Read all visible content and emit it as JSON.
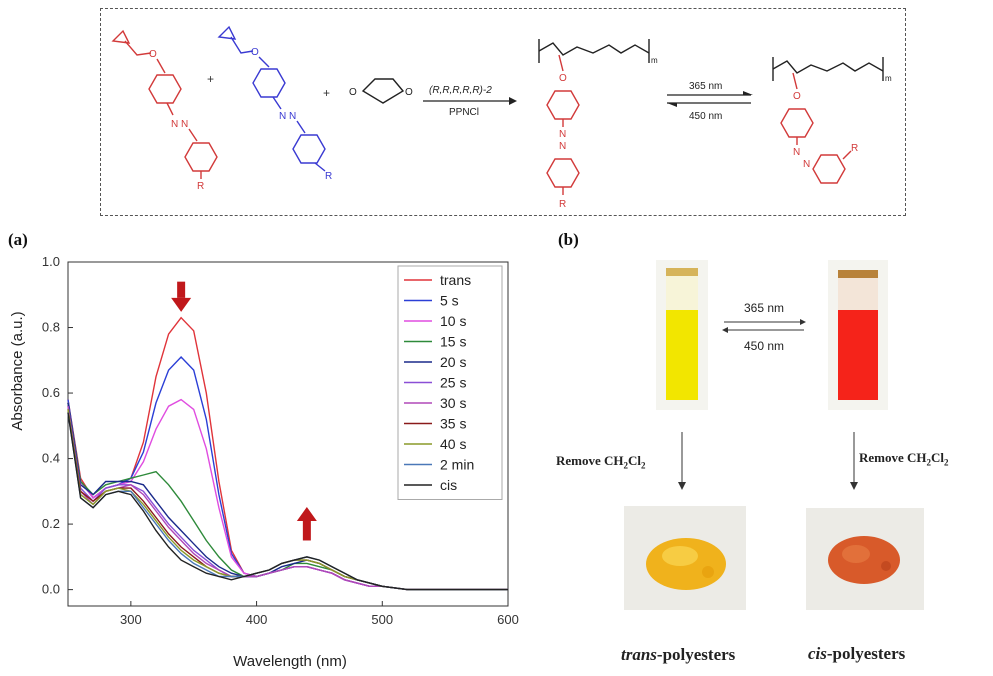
{
  "scheme": {
    "reagent_label": "(R,R,R,R,R)-2",
    "cocatalyst_label": "PPNCl",
    "forward_light": "365 nm",
    "reverse_light": "450 nm",
    "substituent": "R",
    "plus": "+",
    "subscript_m": "m"
  },
  "panel_a": {
    "label": "(a)"
  },
  "panel_b": {
    "label": "(b)",
    "forward_light": "365 nm",
    "reverse_light": "450 nm",
    "remove_left": "Remove CH2Cl2",
    "remove_right": "Remove CH2Cl2",
    "caption_trans_italic": "trans",
    "caption_trans_rest": "-polyesters",
    "caption_cis_italic": "cis",
    "caption_cis_rest": "-polyesters",
    "colors": {
      "trans_solution": "#f2e600",
      "cis_solution": "#f5231a",
      "trans_powder": "#f0b21c",
      "cis_powder": "#d85a2a"
    }
  },
  "chart_data": {
    "type": "line",
    "xlabel": "Wavelength (nm)",
    "ylabel": "Absorbance (a.u.)",
    "xlim": [
      250,
      600
    ],
    "ylim": [
      -0.05,
      1.0
    ],
    "xticks": [
      300,
      400,
      500,
      600
    ],
    "yticks": [
      0.0,
      0.2,
      0.4,
      0.6,
      0.8,
      1.0
    ],
    "legend_position": "top-right",
    "arrows": [
      {
        "x": 340,
        "y_from": 0.94,
        "y_to": 0.86,
        "direction": "down",
        "color": "#c0181b"
      },
      {
        "x": 440,
        "y_from": 0.15,
        "y_to": 0.24,
        "direction": "up",
        "color": "#c0181b"
      }
    ],
    "x": [
      250,
      260,
      270,
      280,
      290,
      300,
      310,
      320,
      330,
      340,
      350,
      360,
      370,
      380,
      390,
      400,
      410,
      420,
      430,
      440,
      450,
      460,
      470,
      480,
      490,
      500,
      520,
      540,
      560,
      580,
      600
    ],
    "series": [
      {
        "name": "trans",
        "color": "#e0343a",
        "values": [
          0.58,
          0.34,
          0.28,
          0.31,
          0.32,
          0.34,
          0.45,
          0.65,
          0.78,
          0.83,
          0.79,
          0.6,
          0.33,
          0.12,
          0.05,
          0.04,
          0.05,
          0.06,
          0.07,
          0.07,
          0.06,
          0.05,
          0.03,
          0.02,
          0.01,
          0.01,
          0.0,
          0.0,
          0.0,
          0.0,
          0.0
        ]
      },
      {
        "name": "5 s",
        "color": "#2b3fd6",
        "values": [
          0.58,
          0.33,
          0.28,
          0.31,
          0.32,
          0.34,
          0.42,
          0.57,
          0.67,
          0.71,
          0.67,
          0.52,
          0.29,
          0.11,
          0.05,
          0.04,
          0.05,
          0.06,
          0.07,
          0.07,
          0.06,
          0.05,
          0.03,
          0.02,
          0.01,
          0.01,
          0.0,
          0.0,
          0.0,
          0.0,
          0.0
        ]
      },
      {
        "name": "10 s",
        "color": "#e04de0",
        "values": [
          0.57,
          0.33,
          0.28,
          0.31,
          0.32,
          0.33,
          0.39,
          0.49,
          0.56,
          0.58,
          0.55,
          0.43,
          0.25,
          0.1,
          0.05,
          0.04,
          0.05,
          0.06,
          0.07,
          0.07,
          0.06,
          0.05,
          0.03,
          0.02,
          0.01,
          0.01,
          0.0,
          0.0,
          0.0,
          0.0,
          0.0
        ]
      },
      {
        "name": "15 s",
        "color": "#2e8a3a",
        "values": [
          0.57,
          0.33,
          0.29,
          0.32,
          0.33,
          0.34,
          0.35,
          0.36,
          0.32,
          0.27,
          0.21,
          0.15,
          0.1,
          0.06,
          0.04,
          0.04,
          0.05,
          0.06,
          0.08,
          0.08,
          0.07,
          0.06,
          0.04,
          0.03,
          0.02,
          0.01,
          0.0,
          0.0,
          0.0,
          0.0,
          0.0
        ]
      },
      {
        "name": "20 s",
        "color": "#1a2a8a",
        "values": [
          0.57,
          0.32,
          0.29,
          0.33,
          0.33,
          0.33,
          0.32,
          0.27,
          0.22,
          0.18,
          0.14,
          0.1,
          0.07,
          0.05,
          0.04,
          0.04,
          0.05,
          0.07,
          0.08,
          0.09,
          0.08,
          0.06,
          0.04,
          0.03,
          0.02,
          0.01,
          0.0,
          0.0,
          0.0,
          0.0,
          0.0
        ]
      },
      {
        "name": "25 s",
        "color": "#8a4fd6",
        "values": [
          0.56,
          0.31,
          0.27,
          0.31,
          0.32,
          0.32,
          0.3,
          0.25,
          0.2,
          0.16,
          0.12,
          0.09,
          0.06,
          0.04,
          0.04,
          0.04,
          0.05,
          0.06,
          0.07,
          0.07,
          0.06,
          0.05,
          0.03,
          0.02,
          0.01,
          0.01,
          0.0,
          0.0,
          0.0,
          0.0,
          0.0
        ]
      },
      {
        "name": "30 s",
        "color": "#b048b8",
        "values": [
          0.56,
          0.3,
          0.26,
          0.3,
          0.31,
          0.32,
          0.29,
          0.24,
          0.19,
          0.15,
          0.11,
          0.08,
          0.06,
          0.04,
          0.04,
          0.04,
          0.05,
          0.06,
          0.07,
          0.07,
          0.06,
          0.05,
          0.03,
          0.02,
          0.01,
          0.01,
          0.0,
          0.0,
          0.0,
          0.0,
          0.0
        ]
      },
      {
        "name": "35 s",
        "color": "#8a1a1a",
        "values": [
          0.55,
          0.3,
          0.27,
          0.3,
          0.31,
          0.31,
          0.27,
          0.22,
          0.17,
          0.13,
          0.1,
          0.07,
          0.05,
          0.04,
          0.04,
          0.05,
          0.06,
          0.08,
          0.09,
          0.09,
          0.08,
          0.06,
          0.04,
          0.03,
          0.02,
          0.01,
          0.0,
          0.0,
          0.0,
          0.0,
          0.0
        ]
      },
      {
        "name": "40 s",
        "color": "#8a9a28",
        "values": [
          0.55,
          0.29,
          0.26,
          0.3,
          0.31,
          0.3,
          0.26,
          0.21,
          0.16,
          0.12,
          0.09,
          0.07,
          0.05,
          0.04,
          0.04,
          0.05,
          0.06,
          0.08,
          0.09,
          0.09,
          0.08,
          0.06,
          0.04,
          0.03,
          0.02,
          0.01,
          0.0,
          0.0,
          0.0,
          0.0,
          0.0
        ]
      },
      {
        "name": "2 min",
        "color": "#4a78b8",
        "values": [
          0.54,
          0.28,
          0.25,
          0.29,
          0.3,
          0.3,
          0.25,
          0.2,
          0.15,
          0.11,
          0.08,
          0.06,
          0.04,
          0.04,
          0.04,
          0.05,
          0.06,
          0.08,
          0.09,
          0.1,
          0.09,
          0.07,
          0.05,
          0.03,
          0.02,
          0.01,
          0.0,
          0.0,
          0.0,
          0.0,
          0.0
        ]
      },
      {
        "name": "cis",
        "color": "#222222",
        "values": [
          0.54,
          0.28,
          0.25,
          0.29,
          0.3,
          0.29,
          0.24,
          0.18,
          0.13,
          0.09,
          0.07,
          0.05,
          0.04,
          0.03,
          0.04,
          0.05,
          0.06,
          0.08,
          0.09,
          0.1,
          0.09,
          0.07,
          0.05,
          0.03,
          0.02,
          0.01,
          0.0,
          0.0,
          0.0,
          0.0,
          0.0
        ]
      }
    ]
  }
}
